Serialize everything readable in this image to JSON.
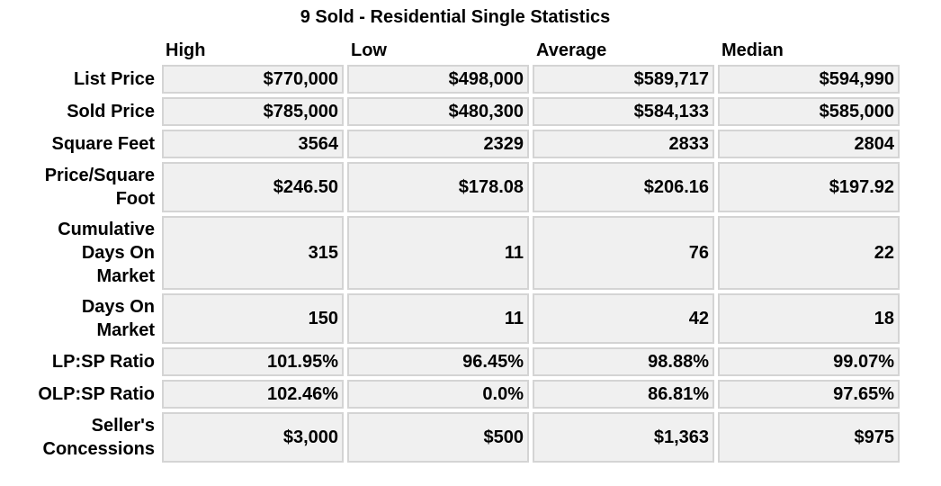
{
  "title": "9 Sold - Residential Single Statistics",
  "columns": [
    "High",
    "Low",
    "Average",
    "Median"
  ],
  "rows": [
    {
      "label": "List Price",
      "values": [
        "$770,000",
        "$498,000",
        "$589,717",
        "$594,990"
      ]
    },
    {
      "label": "Sold Price",
      "values": [
        "$785,000",
        "$480,300",
        "$584,133",
        "$585,000"
      ]
    },
    {
      "label": "Square Feet",
      "values": [
        "3564",
        "2329",
        "2833",
        "2804"
      ]
    },
    {
      "label": "Price/Square Foot",
      "values": [
        "$246.50",
        "$178.08",
        "$206.16",
        "$197.92"
      ]
    },
    {
      "label": "Cumulative Days On Market",
      "values": [
        "315",
        "11",
        "76",
        "22"
      ]
    },
    {
      "label": "Days On Market",
      "values": [
        "150",
        "11",
        "42",
        "18"
      ]
    },
    {
      "label": "LP:SP Ratio",
      "values": [
        "101.95%",
        "96.45%",
        "98.88%",
        "99.07%"
      ]
    },
    {
      "label": "OLP:SP Ratio",
      "values": [
        "102.46%",
        "0.0%",
        "86.81%",
        "97.65%"
      ]
    },
    {
      "label": "Seller's Concessions",
      "values": [
        "$3,000",
        "$500",
        "$1,363",
        "$975"
      ]
    }
  ]
}
